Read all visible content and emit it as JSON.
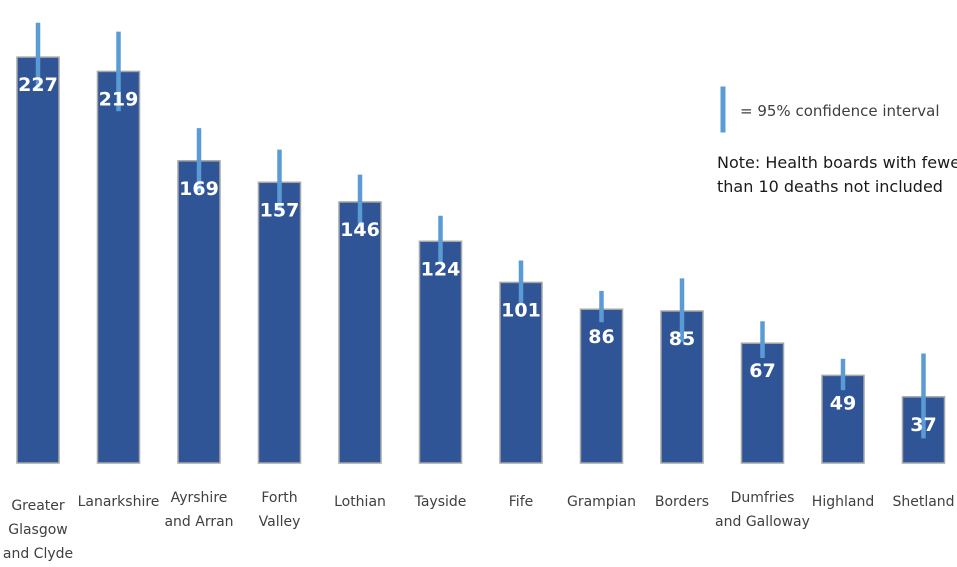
{
  "chart_data": {
    "type": "bar",
    "categories": [
      "Greater Glasgow and Clyde",
      "Lanarkshire",
      "Ayrshire and Arran",
      "Forth Valley",
      "Lothian",
      "Tayside",
      "Fife",
      "Grampian",
      "Borders",
      "Dumfries and Galloway",
      "Highland",
      "Shetland"
    ],
    "category_label_lines": [
      [
        "Greater",
        "Glasgow",
        "and Clyde"
      ],
      [
        "Lanarkshire"
      ],
      [
        "Ayrshire",
        "and Arran"
      ],
      [
        "Forth",
        "Valley"
      ],
      [
        "Lothian"
      ],
      [
        "Tayside"
      ],
      [
        "Fife"
      ],
      [
        "Grampian"
      ],
      [
        "Borders"
      ],
      [
        "Dumfries",
        "and Galloway"
      ],
      [
        "Highland"
      ],
      [
        "Shetland"
      ]
    ],
    "values": [
      227,
      219,
      169,
      157,
      146,
      124,
      101,
      86,
      85,
      67,
      49,
      37
    ],
    "ci_lower": [
      210,
      198,
      153,
      142,
      133,
      113,
      91,
      80,
      69,
      60,
      42,
      15
    ],
    "ci_upper": [
      245,
      240,
      186,
      174,
      160,
      137,
      112,
      95,
      102,
      78,
      57,
      60
    ],
    "data_labels": [
      "227",
      "219",
      "169",
      "157",
      "146",
      "124",
      "101",
      "86",
      "85",
      "67",
      "49",
      "37"
    ],
    "ylim": [
      0,
      250
    ],
    "grid": false,
    "title": "",
    "xlabel": "",
    "ylabel": ""
  },
  "legend": {
    "ci_text": "= 95% confidence interval"
  },
  "note": {
    "lines": [
      "Note: Health boards with fewer",
      "than 10 deaths not included"
    ]
  },
  "colors": {
    "bar_fill": "#2F5597",
    "bar_stroke": "#A6A6A6",
    "ci": "#5B9BD5",
    "value_text": "#FFFFFF",
    "axis_text": "#404040",
    "note_text": "#1A1A1A"
  }
}
